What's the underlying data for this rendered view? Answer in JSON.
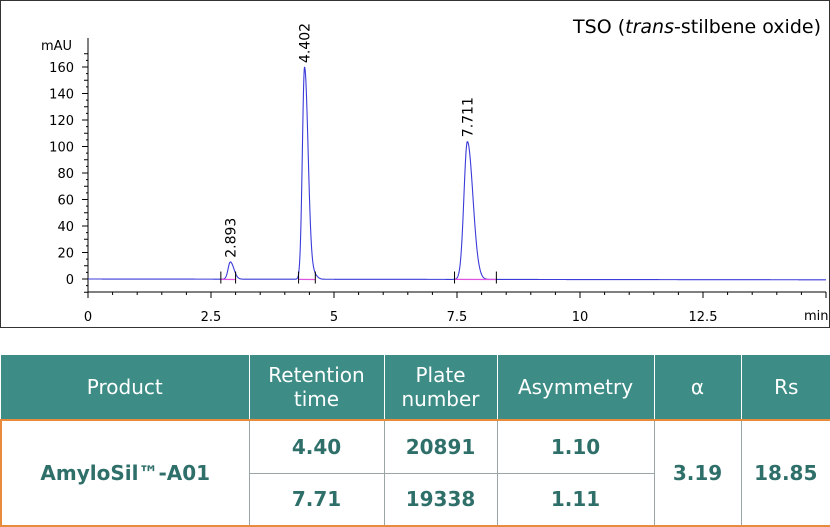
{
  "chart_data": {
    "type": "line",
    "title": "TSO (trans-stilbene oxide)",
    "title_prefix": "TSO (",
    "title_italic": "trans",
    "title_suffix": "-stilbene oxide)",
    "ylabel": "mAU",
    "xlabel": "min",
    "xlim": [
      0,
      15
    ],
    "ylim": [
      -10,
      180
    ],
    "x_ticks": [
      0,
      2.5,
      5,
      7.5,
      10,
      12.5
    ],
    "x_tick_labels": [
      "0",
      "2.5",
      "5",
      "7.5",
      "10",
      "12.5"
    ],
    "y_ticks": [
      0,
      20,
      40,
      60,
      80,
      100,
      120,
      140,
      160
    ],
    "y_tick_labels": [
      "0",
      "20",
      "40",
      "60",
      "80",
      "100",
      "120",
      "140",
      "160"
    ],
    "grid": false,
    "line_color": "#3b3bd9",
    "baseline_color": "#e055e0",
    "peaks": [
      {
        "rt": 2.893,
        "label": "2.893",
        "height": 13,
        "width": 0.045
      },
      {
        "rt": 4.402,
        "label": "4.402",
        "height": 160,
        "width": 0.045
      },
      {
        "rt": 7.711,
        "label": "7.711",
        "height": 104,
        "width": 0.07
      }
    ],
    "small_peaks": [
      {
        "rt": 4.6,
        "height": 3,
        "width": 0.04
      }
    ]
  },
  "table": {
    "headers": [
      "Product",
      "Retention\ntime",
      "Plate\nnumber",
      "Asymmetry",
      "α",
      "Rs"
    ],
    "product": "AmyloSil™-A01",
    "rows": [
      {
        "retention": "4.40",
        "plates": "20891",
        "asymmetry": "1.10"
      },
      {
        "retention": "7.71",
        "plates": "19338",
        "asymmetry": "1.11"
      }
    ],
    "alpha": "3.19",
    "rs": "18.85",
    "colors": {
      "header_bg": "#3d8c86",
      "header_text": "#ffffff",
      "body_text": "#2f6f6a",
      "highlight_border": "#e88b3c"
    }
  }
}
